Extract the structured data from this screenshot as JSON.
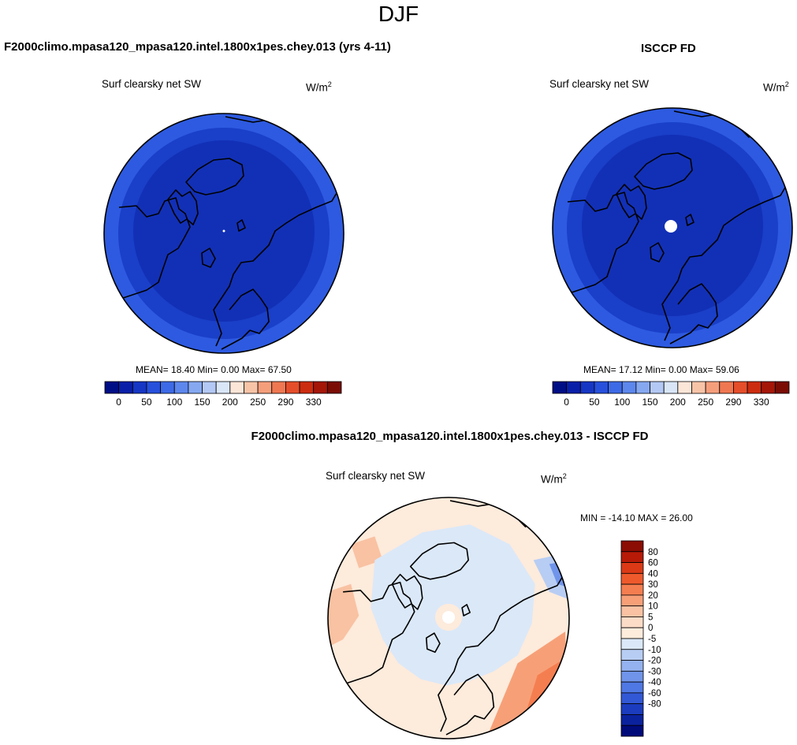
{
  "figure": {
    "title": "DJF",
    "diff_title": "F2000climo.mpasa120_mpasa120.intel.1800x1pes.chey.013 - ISCCP FD"
  },
  "chart_data": [
    {
      "type": "heatmap",
      "projection": "north polar stereographic",
      "title": "F2000climo.mpasa120_mpasa120.intel.1800x1pes.chey.013 (yrs 4-11)",
      "variable": "Surf clearsky net SW",
      "units": "W/m",
      "units_exponent": "2",
      "stats": {
        "mean_label": "MEAN=",
        "mean": "18.40",
        "min_label": "Min=",
        "min": "0.00",
        "max_label": "Max=",
        "max": "67.50"
      },
      "colorbar": {
        "orientation": "horizontal",
        "colors": [
          "#000e85",
          "#0a1fa8",
          "#1636c4",
          "#2750dc",
          "#3d6ae6",
          "#5d87ed",
          "#86a8f1",
          "#b3c8f4",
          "#d9e6f7",
          "#fce6d8",
          "#f8c4a8",
          "#f59e7c",
          "#ef7852",
          "#e54e2a",
          "#cc2c10",
          "#a41608",
          "#7a0c04"
        ],
        "tick_labels": [
          "0",
          "50",
          "100",
          "150",
          "200",
          "250",
          "290",
          "330"
        ]
      }
    },
    {
      "type": "heatmap",
      "projection": "north polar stereographic",
      "title": "ISCCP FD",
      "variable": "Surf clearsky net SW",
      "units": "W/m",
      "units_exponent": "2",
      "stats": {
        "mean_label": "MEAN=",
        "mean": "17.12",
        "min_label": "Min=",
        "min": "0.00",
        "max_label": "Max=",
        "max": "59.06"
      },
      "colorbar": {
        "orientation": "horizontal",
        "colors": [
          "#000e85",
          "#0a1fa8",
          "#1636c4",
          "#2750dc",
          "#3d6ae6",
          "#5d87ed",
          "#86a8f1",
          "#b3c8f4",
          "#d9e6f7",
          "#fce6d8",
          "#f8c4a8",
          "#f59e7c",
          "#ef7852",
          "#e54e2a",
          "#cc2c10",
          "#a41608",
          "#7a0c04"
        ],
        "tick_labels": [
          "0",
          "50",
          "100",
          "150",
          "200",
          "250",
          "290",
          "330"
        ]
      }
    },
    {
      "type": "heatmap",
      "projection": "north polar stereographic",
      "title": "F2000climo.mpasa120_mpasa120.intel.1800x1pes.chey.013 - ISCCP FD",
      "variable": "Surf clearsky net SW",
      "units": "W/m",
      "units_exponent": "2",
      "stats": {
        "text": "MIN = -14.10 MAX =  26.00",
        "min": -14.1,
        "max": 26.0
      },
      "colorbar": {
        "orientation": "vertical",
        "colors_top_to_bottom": [
          "#8b0d04",
          "#b81a08",
          "#dc3a16",
          "#ef5a2c",
          "#f57e50",
          "#f7a078",
          "#f9c2a2",
          "#fcdcc6",
          "#fdebdc",
          "#dbe8f8",
          "#b8cdf3",
          "#94b2ef",
          "#7094ea",
          "#4f78e4",
          "#3358d6",
          "#1b3cbe",
          "#0b229e",
          "#000b7a"
        ],
        "tick_labels_top_to_bottom": [
          "80",
          "60",
          "40",
          "30",
          "20",
          "10",
          "5",
          "0",
          "-5",
          "-10",
          "-20",
          "-30",
          "-40",
          "-60",
          "-80"
        ]
      }
    }
  ]
}
